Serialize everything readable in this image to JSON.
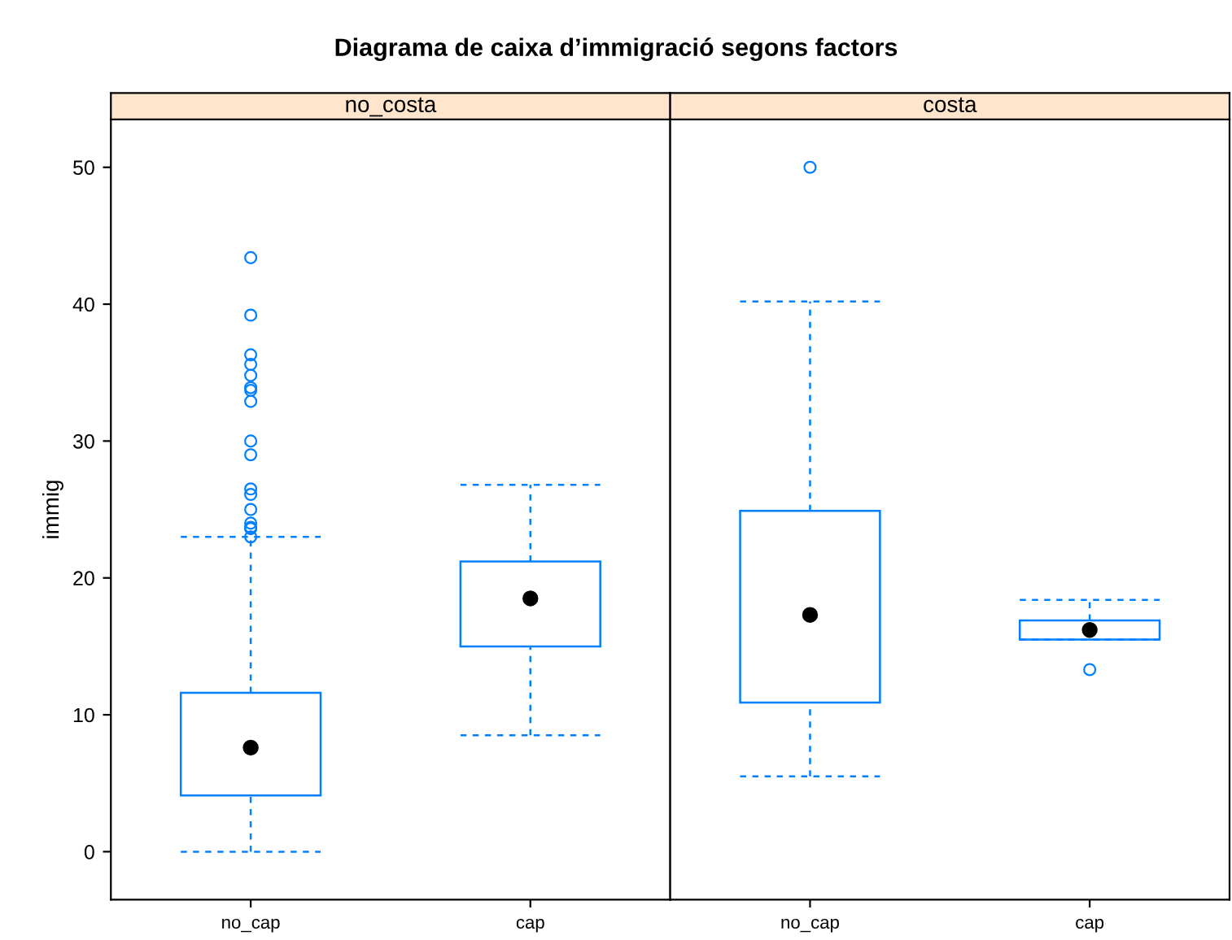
{
  "chart_data": [
    {
      "type": "box",
      "title": "Diagrama de caixa d’immigració segons factors",
      "subtitle": "no_costa",
      "ylabel": "immig",
      "categories": [
        "no_cap",
        "cap"
      ],
      "ylim": [
        -3.5,
        53.5
      ],
      "yticks": [
        0,
        10,
        20,
        30,
        40,
        50
      ],
      "series": [
        {
          "color": "#0080ff",
          "boxes": [
            {
              "low": 0,
              "q1": 4.1,
              "median": 7.6,
              "q3": 11.6,
              "high": 23.0,
              "outliers": [
                43.4,
                39.2,
                36.3,
                35.6,
                34.8,
                33.9,
                33.7,
                32.9,
                30.0,
                29.0,
                26.5,
                26.1,
                25.0,
                24.0,
                23.7,
                23.6,
                23.0
              ]
            },
            {
              "low": 8.5,
              "q1": 15.0,
              "median": 18.5,
              "q3": 21.2,
              "high": 26.8
            }
          ]
        }
      ]
    },
    {
      "type": "box",
      "subtitle": "costa",
      "categories": [
        "no_cap",
        "cap"
      ],
      "ylim": [
        -3.5,
        53.5
      ],
      "yticks": [
        0,
        10,
        20,
        30,
        40,
        50
      ],
      "tick_labels": "x",
      "series": [
        {
          "color": "#0080ff",
          "boxes": [
            {
              "low": 5.5,
              "q1": 10.9,
              "median": 17.3,
              "q3": 24.9,
              "high": 40.2,
              "outliers": [
                50
              ]
            },
            {
              "low": 15.5,
              "q1": 15.5,
              "median": 16.2,
              "q3": 16.9,
              "high": 18.4,
              "outliers": [
                13.3
              ]
            }
          ]
        }
      ]
    }
  ]
}
